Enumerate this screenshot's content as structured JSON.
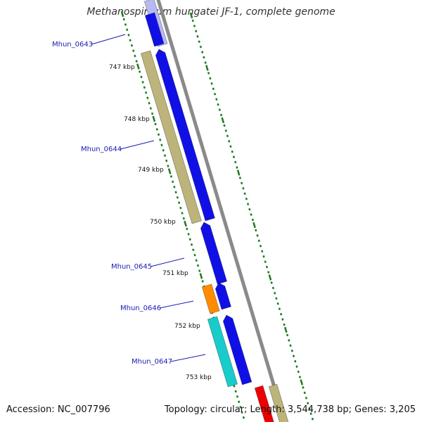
{
  "title": "Methanospirillum hungatei JF-1, complete genome",
  "footer": {
    "accession": "Accession: NC_007796",
    "summary": "Topology: circular; Length: 3,544,738 bp; Genes: 3,205"
  },
  "colors": {
    "backbone": "#8a8a8a",
    "tick": "#1f7a1f",
    "label": "#1a1ab4",
    "blue_gene": "#1010e6",
    "olive_gene": "#bcb47a",
    "orange_gene": "#ff8c00",
    "cyan_gene": "#18cccc",
    "red_gene": "#ee0000"
  },
  "scale_labels": [
    "747 kbp",
    "748 kbp",
    "749 kbp",
    "750 kbp",
    "751 kbp",
    "752 kbp",
    "753 kbp"
  ],
  "gene_labels": [
    "Mhun_0643",
    "Mhun_0644",
    "Mhun_0645",
    "Mhun_0646",
    "Mhun_0647"
  ]
}
